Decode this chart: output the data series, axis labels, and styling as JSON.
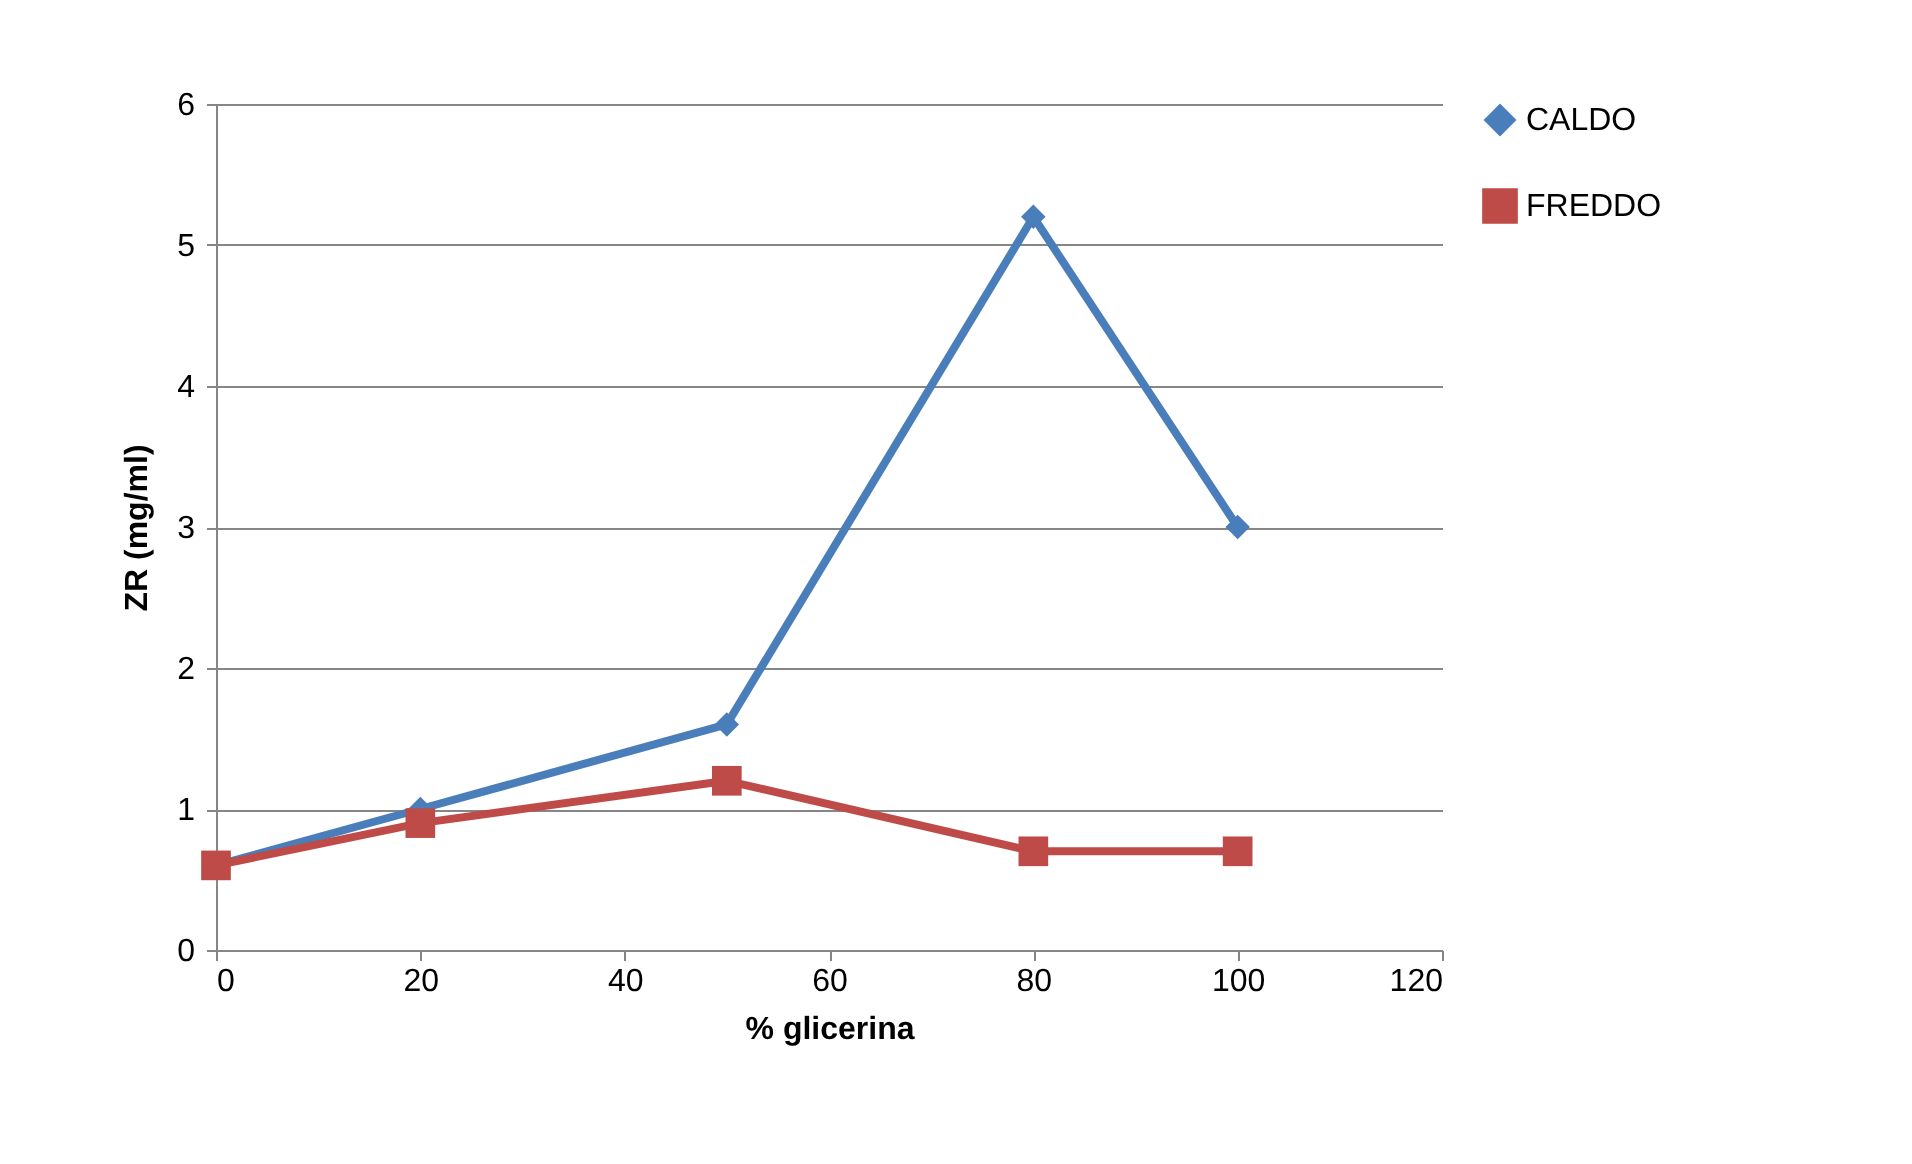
{
  "chart_data": {
    "type": "line",
    "xlabel": "% glicerina",
    "ylabel": "ZR (mg/ml)",
    "x": [
      0,
      20,
      50,
      80,
      100
    ],
    "series": [
      {
        "name": "CALDO",
        "color": "#4a7ebb",
        "marker": "diamond",
        "values": [
          0.6,
          1.0,
          1.6,
          5.2,
          3.0
        ]
      },
      {
        "name": "FREDDO",
        "color": "#be4b48",
        "marker": "square",
        "values": [
          0.6,
          0.9,
          1.2,
          0.7,
          0.7
        ]
      }
    ],
    "xlim": [
      0,
      120
    ],
    "xticks": [
      0,
      20,
      40,
      60,
      80,
      100,
      120
    ],
    "ylim": [
      0,
      6
    ],
    "yticks": [
      0,
      1,
      2,
      3,
      4,
      5,
      6
    ],
    "grid": "y",
    "legend": "right",
    "line_style": "solid"
  }
}
